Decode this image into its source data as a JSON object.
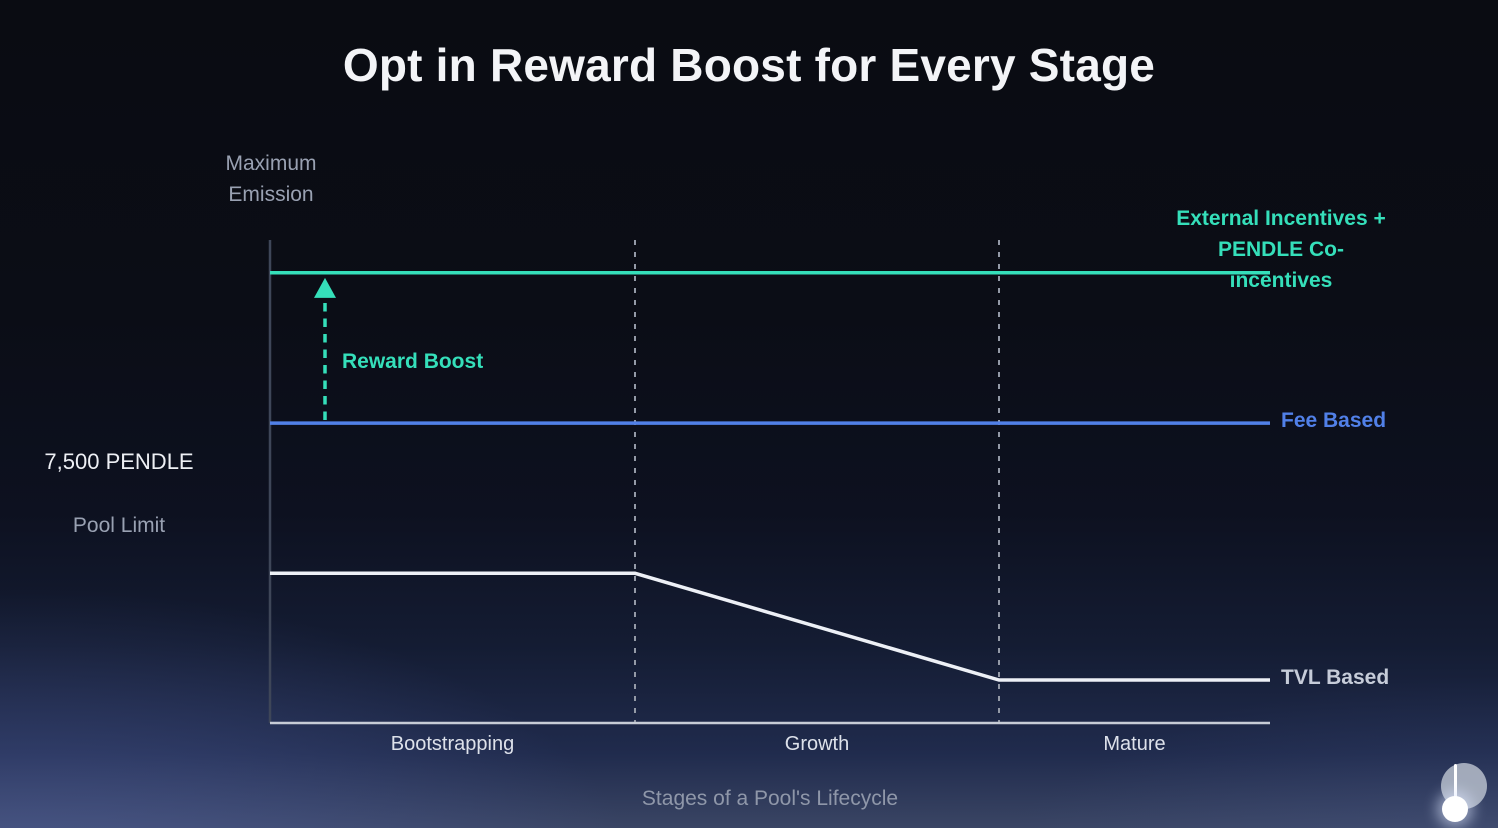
{
  "chart_data": {
    "type": "line",
    "title": "Opt in Reward Boost for Every Stage",
    "xlabel": "Stages of a Pool's Lifecycle",
    "ylabel": "Maximum\nEmission",
    "stages": [
      "Bootstrapping",
      "Growth",
      "Mature"
    ],
    "stage_boundaries_pct": [
      0,
      36.5,
      72.9,
      100
    ],
    "grid": "off",
    "legend_position": "right-of-line-ends",
    "reference_level": {
      "value": "7,500 PENDLE",
      "sublabel": "Pool Limit",
      "y_pct": 62.1
    },
    "series": [
      {
        "name": "External Incentives +\nPENDLE Co-incentives",
        "color": "#35dfba",
        "points": [
          [
            0,
            93.2
          ],
          [
            100,
            93.2
          ]
        ]
      },
      {
        "name": "Fee Based",
        "color": "#5180e8",
        "points": [
          [
            0,
            62.1
          ],
          [
            100,
            62.1
          ]
        ]
      },
      {
        "name": "TVL Based",
        "color": "#edf0f6",
        "points": [
          [
            0,
            31.0
          ],
          [
            36.5,
            31.0
          ],
          [
            72.9,
            8.9
          ],
          [
            100,
            8.9
          ]
        ]
      }
    ],
    "annotations": [
      {
        "label": "Reward Boost",
        "type": "arrow-up-dashed",
        "x_pct": 5.5,
        "from_y_pct": 62.1,
        "to_y_pct": 93.2,
        "color": "#35dfba"
      }
    ]
  },
  "logo": {
    "name": "pendle-pendulum-logo"
  }
}
